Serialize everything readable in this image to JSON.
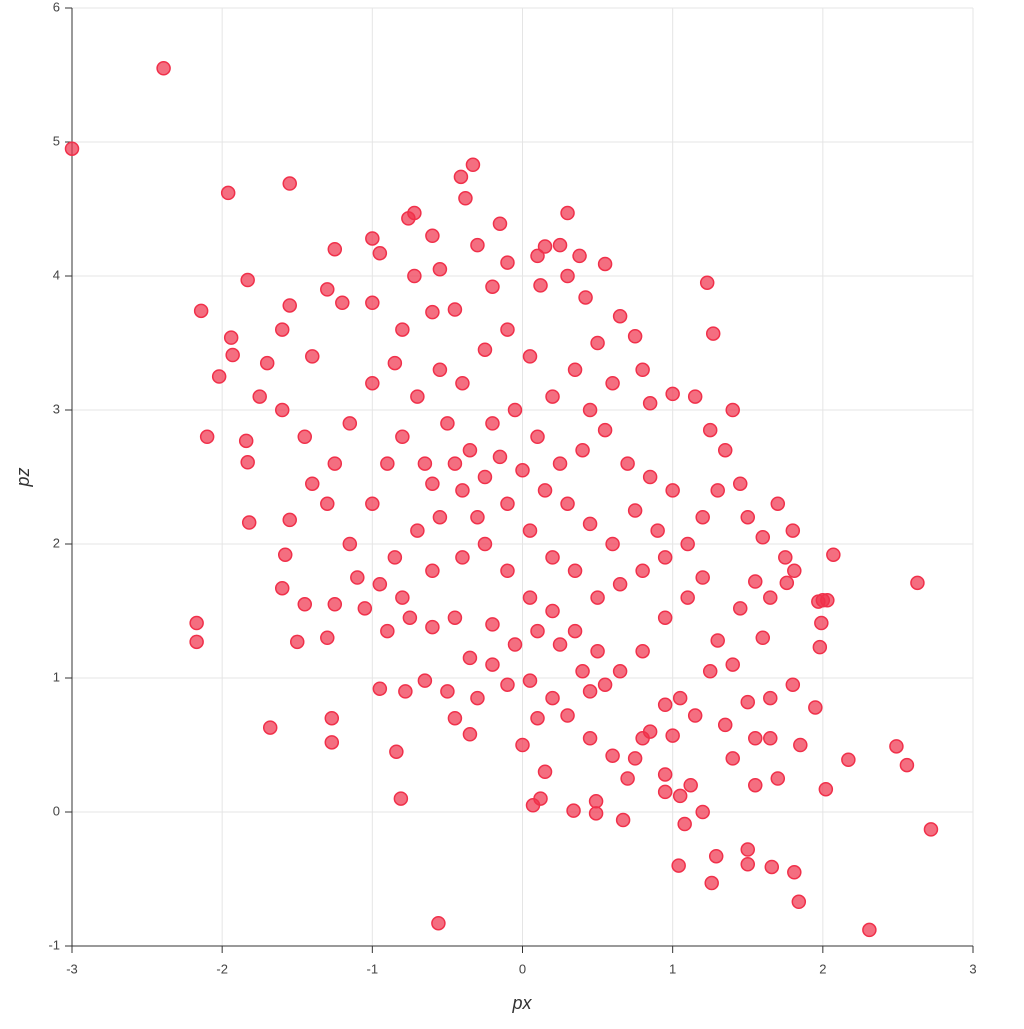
{
  "chart_data": {
    "type": "scatter",
    "x_label": "px",
    "y_label": "pz",
    "xlim": [
      -3,
      3
    ],
    "ylim": [
      -1,
      6
    ],
    "xticks": [
      -3,
      -2,
      -1,
      0,
      1,
      2,
      3
    ],
    "yticks": [
      -1,
      0,
      1,
      2,
      3,
      4,
      5,
      6
    ],
    "grid": true,
    "color": "#f0304a",
    "x": [
      -3,
      -2.39,
      -1.96,
      -1.55,
      -0.33,
      -0.41,
      -0.38,
      0.3,
      -0.76,
      -0.72,
      -0.15,
      -2.14,
      -1.83,
      -1.94,
      -1.93,
      -2.02,
      -2.1,
      -1.84,
      -1.83,
      -1.82,
      -2.17,
      -2.17,
      -1.68,
      -1.27,
      -1.27,
      -0.81,
      -0.56,
      -0.84,
      1.23,
      1.27,
      1.4,
      2.07,
      2.63,
      2.72,
      2.31,
      2.49,
      2.56,
      2.17,
      2.02,
      1.84,
      1.81,
      1.5,
      1.5,
      1.66,
      1.26,
      1.04,
      1.29,
      1.08,
      0.67,
      0.07,
      0.12,
      0.34,
      0.49,
      0.49,
      1.0,
      1.95,
      1.98,
      1.99,
      2.0,
      2.03,
      1.97,
      1.81,
      1.76,
      -1.3,
      -1.25,
      -1.0,
      -0.95,
      -0.72,
      -0.6,
      -0.55,
      -0.3,
      -0.1,
      0.1,
      0.15,
      0.25,
      0.38,
      0.55,
      0.3,
      0.42,
      0.12,
      -0.2,
      -0.45,
      -0.6,
      -0.8,
      -1.0,
      -1.2,
      -1.4,
      -1.55,
      -1.6,
      -1.7,
      -1.75,
      -1.6,
      -1.45,
      -1.4,
      -1.55,
      -1.58,
      -1.6,
      -1.45,
      -1.5,
      -1.3,
      -1.25,
      -1.1,
      -1.05,
      -0.9,
      -0.75,
      -0.6,
      -0.45,
      -0.95,
      -0.78,
      -0.65,
      -0.5,
      -0.45,
      -0.35,
      -0.3,
      -0.2,
      -0.1,
      0.05,
      0.2,
      0.1,
      0.3,
      0.45,
      0.6,
      0.75,
      0.85,
      0.95,
      0.95,
      1.05,
      1.12,
      1.2,
      1.35,
      1.5,
      1.55,
      1.7,
      1.65,
      1.8,
      1.4,
      1.3,
      1.45,
      1.55,
      1.6,
      1.65,
      1.75,
      1.8,
      1.7,
      1.6,
      1.5,
      1.45,
      1.35,
      1.3,
      1.2,
      1.25,
      1.15,
      1.0,
      0.85,
      0.8,
      0.75,
      0.65,
      0.5,
      0.6,
      0.45,
      0.35,
      0.2,
      0.05,
      -0.1,
      -0.25,
      -0.4,
      -0.55,
      -0.7,
      -0.85,
      -1.0,
      -1.15,
      -1.25,
      -1.3,
      -1.15,
      -1.0,
      -0.9,
      -0.8,
      -0.65,
      -0.5,
      -0.35,
      -0.2,
      -0.05,
      0.1,
      0.25,
      0.4,
      0.55,
      0.7,
      0.85,
      1.0,
      1.1,
      0.95,
      0.8,
      0.65,
      0.5,
      0.35,
      0.2,
      0.05,
      -0.1,
      -0.25,
      -0.4,
      -0.55,
      -0.7,
      -0.85,
      -0.95,
      -0.8,
      -0.6,
      -0.4,
      -0.25,
      -0.1,
      0.05,
      0.2,
      0.35,
      0.5,
      0.65,
      0.8,
      0.95,
      1.1,
      1.2,
      0.9,
      0.75,
      0.6,
      0.45,
      0.3,
      0.15,
      0.0,
      -0.15,
      -0.3,
      -0.45,
      -0.6,
      0.25,
      0.1,
      -0.05,
      -0.2,
      -0.35,
      0.55,
      0.4,
      1.05,
      1.25,
      1.15,
      0.7,
      0.8,
      0.45,
      0.0,
      0.15,
      1.85,
      1.65,
      1.55,
      1.4,
      0.95
    ],
    "values": [
      4.95,
      5.55,
      4.62,
      4.69,
      4.83,
      4.74,
      4.58,
      4.47,
      4.43,
      4.47,
      4.39,
      3.74,
      3.97,
      3.54,
      3.41,
      3.25,
      2.8,
      2.77,
      2.61,
      2.16,
      1.41,
      1.27,
      0.63,
      0.52,
      0.7,
      0.1,
      -0.83,
      0.45,
      3.95,
      3.57,
      3.0,
      1.92,
      1.71,
      -0.13,
      -0.88,
      0.49,
      0.35,
      0.39,
      0.17,
      -0.67,
      -0.45,
      -0.28,
      -0.39,
      -0.41,
      -0.53,
      -0.4,
      -0.33,
      -0.09,
      -0.06,
      0.05,
      0.1,
      0.01,
      0.08,
      -0.01,
      0.57,
      0.78,
      1.23,
      1.41,
      1.58,
      1.58,
      1.57,
      1.8,
      1.71,
      3.9,
      4.2,
      4.28,
      4.17,
      4.0,
      4.3,
      4.05,
      4.23,
      4.1,
      4.15,
      4.22,
      4.23,
      4.15,
      4.09,
      4.0,
      3.84,
      3.93,
      3.92,
      3.75,
      3.73,
      3.6,
      3.8,
      3.8,
      3.4,
      3.78,
      3.6,
      3.35,
      3.1,
      3.0,
      2.8,
      2.45,
      2.18,
      1.92,
      1.67,
      1.55,
      1.27,
      1.3,
      1.55,
      1.75,
      1.52,
      1.35,
      1.45,
      1.38,
      1.45,
      0.92,
      0.9,
      0.98,
      0.9,
      0.7,
      0.58,
      0.85,
      1.1,
      0.95,
      0.98,
      0.85,
      0.7,
      0.72,
      0.55,
      0.42,
      0.4,
      0.6,
      0.8,
      0.28,
      0.12,
      0.2,
      0.0,
      0.65,
      0.82,
      0.55,
      0.25,
      0.85,
      0.95,
      1.1,
      1.28,
      1.52,
      1.72,
      1.3,
      1.6,
      1.9,
      2.1,
      2.3,
      2.05,
      2.2,
      2.45,
      2.7,
      2.4,
      2.2,
      2.85,
      3.1,
      3.12,
      3.05,
      3.3,
      3.55,
      3.7,
      3.5,
      3.2,
      3.0,
      3.3,
      3.1,
      3.4,
      3.6,
      3.45,
      3.2,
      3.3,
      3.1,
      3.35,
      3.2,
      2.9,
      2.6,
      2.3,
      2.0,
      2.3,
      2.6,
      2.8,
      2.6,
      2.9,
      2.7,
      2.9,
      3.0,
      2.8,
      2.6,
      2.7,
      2.85,
      2.6,
      2.5,
      2.4,
      2.0,
      1.9,
      1.8,
      1.7,
      1.6,
      1.8,
      1.9,
      2.1,
      2.3,
      2.5,
      2.4,
      2.2,
      2.1,
      1.9,
      1.7,
      1.6,
      1.8,
      1.9,
      2.0,
      1.8,
      1.6,
      1.5,
      1.35,
      1.2,
      1.05,
      1.2,
      1.45,
      1.6,
      1.75,
      2.1,
      2.25,
      2.0,
      2.15,
      2.3,
      2.4,
      2.55,
      2.65,
      2.2,
      2.6,
      2.45,
      1.25,
      1.35,
      1.25,
      1.4,
      1.15,
      0.95,
      1.05,
      0.85,
      1.05,
      0.72,
      0.25,
      0.55,
      0.9,
      0.5,
      0.3,
      0.5,
      0.55,
      0.2,
      0.4,
      0.15
    ]
  }
}
